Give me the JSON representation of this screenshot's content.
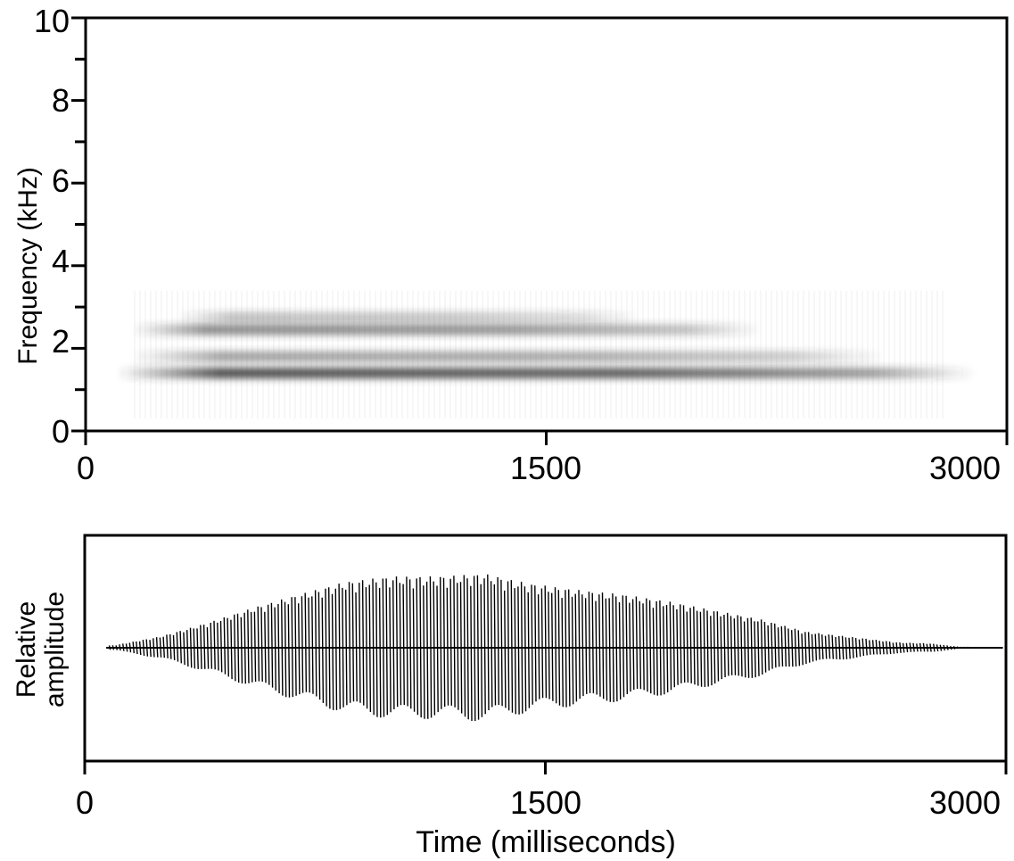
{
  "chart_data": [
    {
      "type": "heatmap",
      "title": "",
      "xlabel": "",
      "ylabel": "Frequency (kHz)",
      "xlim": [
        0,
        3000
      ],
      "ylim": [
        0,
        10
      ],
      "x_ticks": [
        "0",
        "1500",
        "3000"
      ],
      "y_ticks": [
        "0",
        "2",
        "4",
        "6",
        "8",
        "10"
      ],
      "grid": false,
      "color": "#333333",
      "bands": [
        {
          "freq_khz": 1.4,
          "start_ms": 100,
          "end_ms": 2900,
          "intensity": 0.85
        },
        {
          "freq_khz": 1.8,
          "start_ms": 150,
          "end_ms": 2600,
          "intensity": 0.45
        },
        {
          "freq_khz": 2.45,
          "start_ms": 150,
          "end_ms": 2200,
          "intensity": 0.55
        },
        {
          "freq_khz": 2.75,
          "start_ms": 300,
          "end_ms": 1800,
          "intensity": 0.3
        }
      ]
    },
    {
      "type": "line",
      "title": "",
      "xlabel": "Time (milliseconds)",
      "ylabel": "Relative amplitude",
      "ylabel_lines": [
        "Relative",
        "amplitude"
      ],
      "xlim": [
        0,
        3000
      ],
      "ylim": [
        -1,
        1
      ],
      "x_ticks": [
        "0",
        "1500",
        "3000"
      ],
      "grid": false,
      "color": "#000000",
      "envelope": {
        "x": [
          0,
          100,
          250,
          400,
          550,
          700,
          850,
          1000,
          1150,
          1300,
          1450,
          1600,
          1750,
          1900,
          2050,
          2200,
          2350,
          2500,
          2650,
          2750,
          2850,
          3000
        ],
        "amplitude": [
          0.01,
          0.03,
          0.13,
          0.28,
          0.45,
          0.6,
          0.74,
          0.8,
          0.8,
          0.83,
          0.72,
          0.65,
          0.6,
          0.52,
          0.42,
          0.32,
          0.18,
          0.12,
          0.06,
          0.05,
          0.01,
          0.01
        ]
      }
    }
  ]
}
